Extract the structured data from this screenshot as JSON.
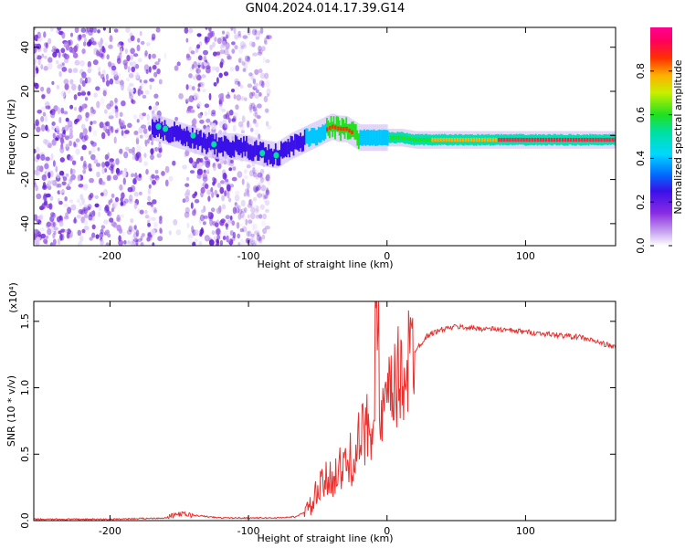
{
  "title": "GN04.2024.014.17.39.G14",
  "chart_data": [
    {
      "type": "heatmap",
      "xlabel": "Height of straight line (km)",
      "ylabel": "Frequency (Hz)",
      "xlim": [
        -255,
        165
      ],
      "ylim": [
        -50,
        49
      ],
      "x_ticks": [
        -200,
        -100,
        0,
        100
      ],
      "y_ticks": [
        40,
        20,
        0,
        -20,
        -40
      ],
      "colorbar": {
        "label": "Normalized spectral amplitude",
        "range": [
          0,
          1
        ],
        "ticks": [
          "0.0",
          "0.2",
          "0.4",
          "0.6",
          "0.8"
        ],
        "colormap": "rainbow (white-violet-blue-cyan-green-yellow-red-magenta)"
      },
      "ridge": {
        "description": "dominant frequency track",
        "x": [
          -170,
          -160,
          -150,
          -140,
          -130,
          -120,
          -110,
          -100,
          -90,
          -80,
          -70,
          -60,
          -50,
          -40,
          -35,
          -30,
          -25,
          -20,
          -10,
          0,
          10,
          20,
          40,
          60,
          80,
          100,
          120,
          140,
          165
        ],
        "y": [
          4,
          2,
          0,
          -2,
          -4,
          -5,
          -5,
          -6,
          -8,
          -9,
          -5,
          -2,
          1,
          4,
          3,
          3,
          1,
          -1,
          -1,
          -1,
          -1,
          -2,
          -2,
          -2,
          -2,
          -2,
          -2,
          -2,
          -2
        ],
        "noise_region_x": [
          -255,
          -85
        ]
      }
    },
    {
      "type": "line",
      "xlabel": "Height of straight line (km)",
      "ylabel": "SNR (10 * v/v)",
      "y_scale_label": "(x10⁴)",
      "xlim": [
        -255,
        165
      ],
      "ylim": [
        0,
        1.65
      ],
      "x_ticks": [
        -200,
        -100,
        0,
        100
      ],
      "y_ticks": [
        "0.0",
        "0.5",
        "1.0",
        "1.5"
      ],
      "series": [
        {
          "color": "#e8312f",
          "x": [
            -255,
            -200,
            -160,
            -150,
            -140,
            -120,
            -80,
            -65,
            -55,
            -50,
            -40,
            -30,
            -25,
            -20,
            -15,
            -10,
            -8,
            -6,
            -5,
            -3,
            0,
            5,
            10,
            20,
            30,
            40,
            50,
            60,
            80,
            100,
            120,
            140,
            160,
            165
          ],
          "y": [
            0.01,
            0.01,
            0.02,
            0.05,
            0.04,
            0.02,
            0.02,
            0.03,
            0.1,
            0.22,
            0.34,
            0.4,
            0.48,
            0.58,
            0.68,
            0.8,
            1.65,
            0.85,
            0.7,
            0.78,
            0.86,
            0.98,
            1.1,
            1.28,
            1.4,
            1.44,
            1.46,
            1.45,
            1.44,
            1.42,
            1.4,
            1.38,
            1.32,
            1.3
          ]
        }
      ]
    }
  ]
}
